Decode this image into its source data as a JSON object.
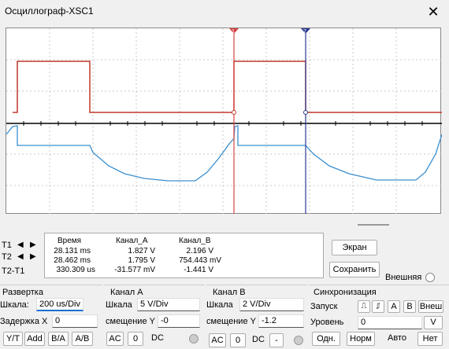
{
  "window": {
    "title": "Осциллограф-XSC1",
    "close": "✕"
  },
  "cursors": {
    "t1": "1",
    "t2": "2"
  },
  "readout": {
    "headers": [
      "Время",
      "Канал_A",
      "Канал_B"
    ],
    "rows": [
      {
        "label": "T1",
        "time": "28.131 ms",
        "a": "1.827 V",
        "b": "2.196 V"
      },
      {
        "label": "T2",
        "time": "28.462 ms",
        "a": "1.795 V",
        "b": "754.443 mV"
      },
      {
        "label": "T2-T1",
        "time": "330.309 us",
        "a": "-31.577 mV",
        "b": "-1.441 V"
      }
    ]
  },
  "buttons": {
    "screen": "Экран",
    "save": "Сохранить",
    "external": "Внешняя"
  },
  "timebase": {
    "title": "Развертка",
    "scale_label": "Шкала:",
    "scale_value": "200 us/Div",
    "delay_label": "Задержка X",
    "delay_value": "0",
    "yt": "Y/T",
    "add": "Add",
    "ba": "B/A",
    "ab": "A/B"
  },
  "channel_a": {
    "title": "Канал A",
    "scale_label": "Шкала",
    "scale_value": "5  V/Div",
    "offset_label": "смещение Y",
    "offset_value": "-0",
    "ac": "AC",
    "zero": "0",
    "dc": "DC"
  },
  "channel_b": {
    "title": "Канал B",
    "scale_label": "Шкала",
    "scale_value": "2  V/Div",
    "offset_label": "смещение Y",
    "offset_value": "-1.2",
    "ac": "AC",
    "zero": "0",
    "dc": "DC",
    "minus": "-"
  },
  "trigger": {
    "title": "Синхронизация",
    "edge_label": "Запуск",
    "rise": "⎍",
    "fall": "⎎",
    "a": "A",
    "b": "B",
    "ext": "Внеш",
    "level_label": "Уровень",
    "level_value": "0",
    "level_unit": "V",
    "single": "Одн.",
    "normal": "Норм",
    "auto": "Авто",
    "none": "Нет"
  },
  "colors": {
    "ch_a": "#c0392b",
    "ch_b": "#3a8fd0",
    "cursor1": "#d64545",
    "cursor2": "#2b3a8f"
  }
}
